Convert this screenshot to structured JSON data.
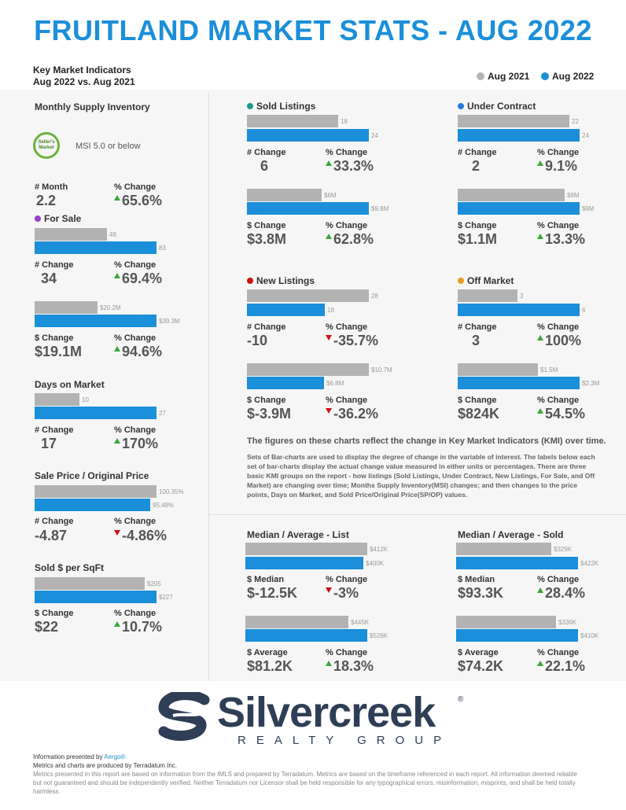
{
  "title": "FRUITLAND MARKET STATS - AUG 2022",
  "kmi": {
    "line1": "Key Market Indicators",
    "line2": "Aug 2022 vs. Aug 2021"
  },
  "legend": {
    "a": "Aug 2021",
    "b": "Aug 2022",
    "color_a": "#b3b3b3",
    "color_b": "#1b8fd9"
  },
  "msi": {
    "title": "Monthly Supply Inventory",
    "badge": "Seller's Market",
    "text": "MSI 5.0 or below",
    "l1": "# Month",
    "v1": "2.2",
    "l2": "% Change",
    "v2": "65.6%"
  },
  "for_sale": {
    "title": "For Sale",
    "dot": "#9b3fc8",
    "u_a": "49",
    "u_b": "83",
    "l1": "# Change",
    "v1": "34",
    "l2": "% Change",
    "v2": "69.4%",
    "d_a": "$20.2M",
    "d_b": "$39.3M",
    "l3": "$ Change",
    "v3": "$19.1M",
    "l4": "% Change",
    "v4": "94.6%"
  },
  "dom": {
    "title": "Days on Market",
    "a": "10",
    "b": "27",
    "l1": "# Change",
    "v1": "17",
    "l2": "% Change",
    "v2": "170%"
  },
  "sp": {
    "title": "Sale Price / Original Price",
    "a": "100.35%",
    "b": "95.48%",
    "l1": "# Change",
    "v1": "-4.87",
    "l2": "% Change",
    "v2": "-4.86%"
  },
  "sqft": {
    "title": "Sold $ per SqFt",
    "a": "$205",
    "b": "$227",
    "l1": "$ Change",
    "v1": "$22",
    "l2": "% Change",
    "v2": "10.7%"
  },
  "sold": {
    "title": "Sold Listings",
    "dot": "#1a9a8a",
    "u_a": "18",
    "u_b": "24",
    "l1": "# Change",
    "v1": "6",
    "l2": "% Change",
    "v2": "33.3%",
    "d_a": "$6M",
    "d_b": "$9.8M",
    "l3": "$ Change",
    "v3": "$3.8M",
    "l4": "% Change",
    "v4": "62.8%"
  },
  "uc": {
    "title": "Under Contract",
    "dot": "#2a7ad9",
    "u_a": "22",
    "u_b": "24",
    "l1": "# Change",
    "v1": "2",
    "l2": "% Change",
    "v2": "9.1%",
    "d_a": "$8M",
    "d_b": "$9M",
    "l3": "$ Change",
    "v3": "$1.1M",
    "l4": "% Change",
    "v4": "13.3%"
  },
  "newl": {
    "title": "New Listings",
    "dot": "#cc1111",
    "u_a": "28",
    "u_b": "18",
    "l1": "# Change",
    "v1": "-10",
    "l2": "% Change",
    "v2": "-35.7%",
    "d_a": "$10.7M",
    "d_b": "$6.8M",
    "l3": "$ Change",
    "v3": "$-3.9M",
    "l4": "% Change",
    "v4": "-36.2%"
  },
  "off": {
    "title": "Off Market",
    "dot": "#e8a020",
    "u_a": "3",
    "u_b": "6",
    "l1": "# Change",
    "v1": "3",
    "l2": "% Change",
    "v2": "100%",
    "d_a": "$1.5M",
    "d_b": "$2.3M",
    "l3": "$ Change",
    "v3": "$824K",
    "l4": "% Change",
    "v4": "54.5%"
  },
  "notes": {
    "bold": "The figures on these charts reflect the change in Key Market Indicators (KMI) over time.",
    "body": "Sets of Bar-charts are used to display the degree of change in the variable of interest. The labels below each set of bar-charts display the actual change value measured in either units or percentages. There are three basic KMI groups on the report - how listings (Sold Listings, Under Contract, New Listings, For Sale, and Off Market) are changing over time; Months Supply Inventory(MSI) changes; and then changes to the price points, Days on Market, and Sold Price/Original Price(SP/OP) values."
  },
  "list": {
    "title": "Median / Average - List",
    "m_a": "$412K",
    "m_b": "$400K",
    "l1": "$ Median",
    "v1": "$-12.5K",
    "l2": "% Change",
    "v2": "-3%",
    "a_a": "$445K",
    "a_b": "$526K",
    "l3": "$ Average",
    "v3": "$81.2K",
    "l4": "% Change",
    "v4": "18.3%"
  },
  "soldp": {
    "title": "Median / Average - Sold",
    "m_a": "$329K",
    "m_b": "$422K",
    "l1": "$ Median",
    "v1": "$93.3K",
    "l2": "% Change",
    "v2": "28.4%",
    "a_a": "$336K",
    "a_b": "$410K",
    "l3": "$ Average",
    "v3": "$74.2K",
    "l4": "% Change",
    "v4": "22.1%"
  },
  "logo": {
    "name": "Silvercreek",
    "sub": "REALTY GROUP",
    "reg": "®"
  },
  "footer": {
    "presented": "Information presented by ",
    "aergo": "Aergo®",
    "metrics": "Metrics and charts are produced by Terradatum Inc.",
    "disclaimer": "Metrics presented in this report are based on information from the IMLS and prepared by Terradatum. Metrics are based on the timeframe referenced in each report. All information deemed reliable but not guaranteed and should be independently verified. Neither Terradatum nor Licensor shall be held responsible for any typographical errors, misinformation, misprints, and shall be held totally harmless."
  }
}
